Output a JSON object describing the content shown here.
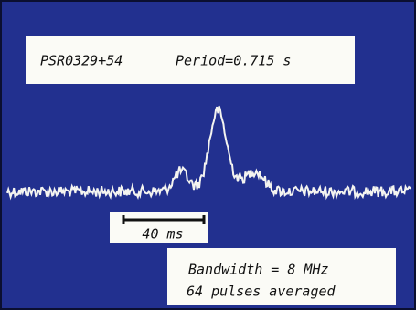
{
  "source_label": "PSR0329+54",
  "period_label": "Period=0.715 s",
  "scale_bar_label": "40 ms",
  "notes": [
    "Bandwidth = 8 MHz",
    "64 pulses averaged"
  ]
}
